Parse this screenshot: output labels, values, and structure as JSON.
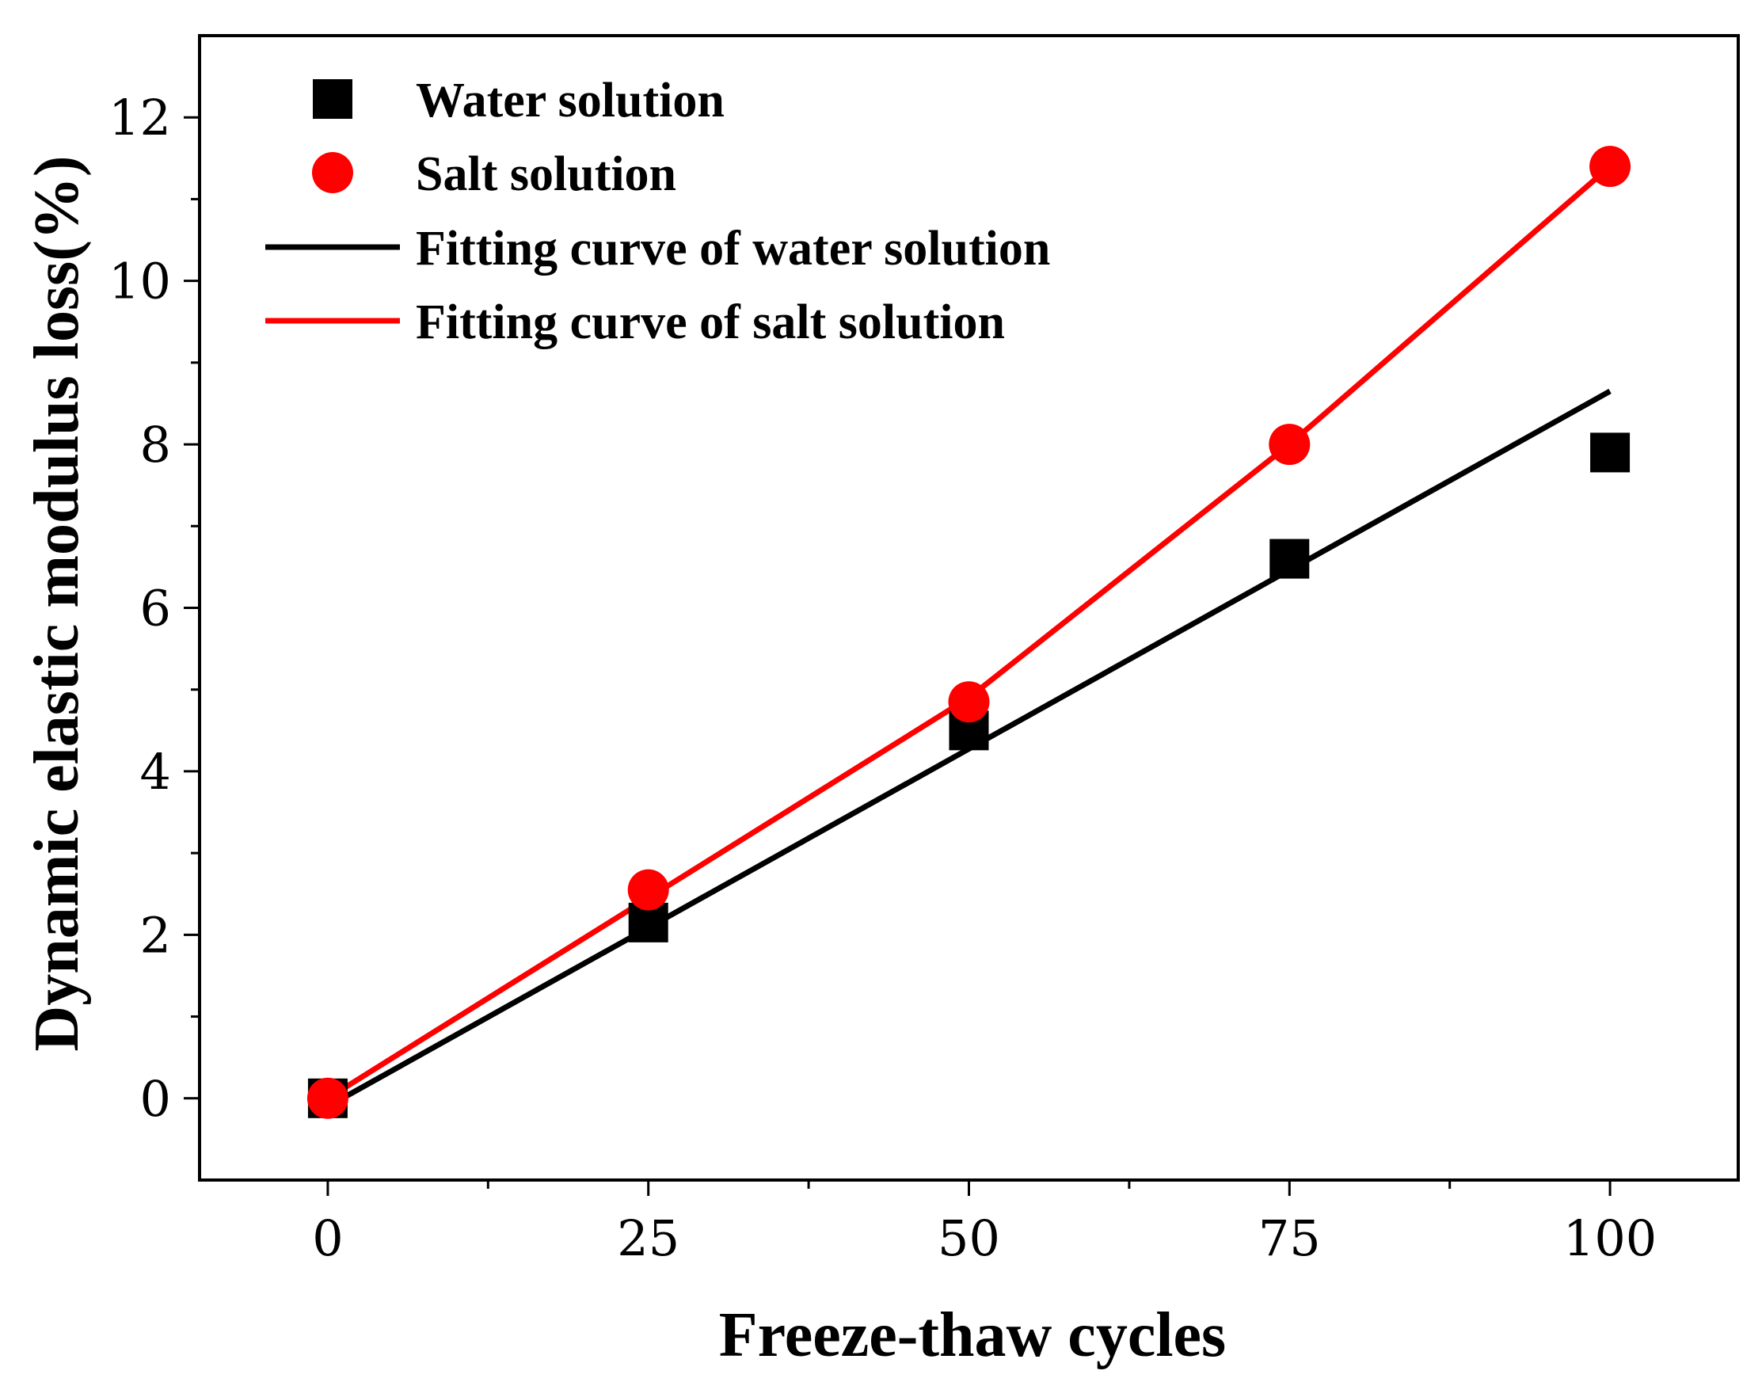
{
  "chart_data": {
    "type": "scatter",
    "title": "",
    "xlabel": "Freeze-thaw cycles",
    "ylabel": "Dynamic elastic modulus loss(%)",
    "xlim": [
      -10,
      110
    ],
    "ylim": [
      -1,
      13
    ],
    "xticks": [
      0,
      25,
      50,
      75,
      100
    ],
    "yticks": [
      0,
      2,
      4,
      6,
      8,
      10,
      12
    ],
    "grid": false,
    "legend_position": "top-left",
    "series": [
      {
        "name": "Water solution",
        "kind": "scatter",
        "marker": "square",
        "color": "#000000",
        "x": [
          0,
          25,
          50,
          75,
          100
        ],
        "y": [
          0.0,
          2.15,
          4.5,
          6.6,
          7.9
        ]
      },
      {
        "name": "Salt solution",
        "kind": "scatter",
        "marker": "circle",
        "color": "#ff0000",
        "x": [
          0,
          25,
          50,
          75,
          100
        ],
        "y": [
          0.0,
          2.55,
          4.85,
          8.0,
          11.4
        ]
      },
      {
        "name": "Fitting curve of water solution",
        "kind": "line",
        "color": "#000000",
        "x": [
          0,
          100
        ],
        "y": [
          -0.1,
          8.65
        ]
      },
      {
        "name": "Fitting curve of salt solution",
        "kind": "line",
        "color": "#ff0000",
        "x": [
          0,
          25,
          50,
          75,
          100
        ],
        "y": [
          0.0,
          2.45,
          4.9,
          8.0,
          11.4
        ]
      }
    ]
  }
}
